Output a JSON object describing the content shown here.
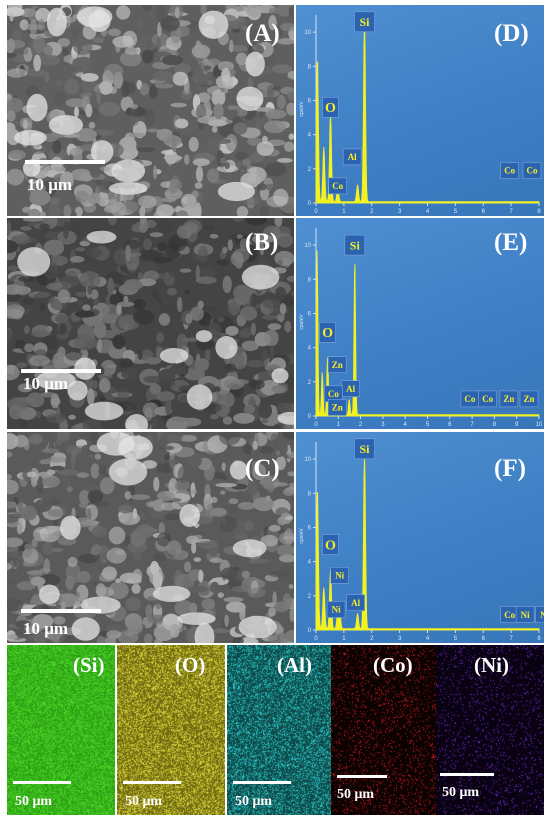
{
  "sem_panels": [
    {
      "letter": "(A)",
      "scale_label": "10 μm"
    },
    {
      "letter": "(B)",
      "scale_label": "10 μm"
    },
    {
      "letter": "(C)",
      "scale_label": "10 μm"
    }
  ],
  "chart_data": [
    {
      "type": "line",
      "panel_letter": "(D)",
      "xlim": [
        0,
        8
      ],
      "ylim": [
        0,
        11
      ],
      "x_ticks": [
        "0",
        "1",
        "2",
        "3",
        "4",
        "5",
        "6",
        "7",
        "8"
      ],
      "y_ticks": [
        "0",
        "2",
        "4",
        "6",
        "8",
        "10"
      ],
      "ylabel": "cps/eV",
      "peaks": [
        {
          "x": 0.05,
          "y": 8.5
        },
        {
          "x": 0.28,
          "y": 3.2
        },
        {
          "x": 0.52,
          "y": 5.2
        },
        {
          "x": 0.78,
          "y": 0.8
        },
        {
          "x": 1.49,
          "y": 1.0
        },
        {
          "x": 1.74,
          "y": 10.7
        }
      ],
      "annotations": [
        {
          "text": "Si",
          "x": 1.74,
          "y": 10.6
        },
        {
          "text": "O",
          "x": 0.52,
          "y": 5.6
        },
        {
          "text": "Al",
          "x": 1.3,
          "y": 2.7
        },
        {
          "text": "Co",
          "x": 0.78,
          "y": 1.0
        },
        {
          "text": "Co",
          "x": 6.95,
          "y": 1.9
        },
        {
          "text": "Co",
          "x": 7.75,
          "y": 1.9
        }
      ]
    },
    {
      "type": "line",
      "panel_letter": "(E)",
      "xlim": [
        0,
        10
      ],
      "ylim": [
        0,
        11
      ],
      "x_ticks": [
        "0",
        "1",
        "2",
        "3",
        "4",
        "5",
        "6",
        "7",
        "8",
        "9",
        "10"
      ],
      "y_ticks": [
        "0",
        "2",
        "4",
        "6",
        "8",
        "10"
      ],
      "ylabel": "cps/eV",
      "peaks": [
        {
          "x": 0.05,
          "y": 9.6
        },
        {
          "x": 0.28,
          "y": 2.5
        },
        {
          "x": 0.52,
          "y": 3.4
        },
        {
          "x": 0.78,
          "y": 1.0
        },
        {
          "x": 1.01,
          "y": 1.1
        },
        {
          "x": 1.49,
          "y": 0.9
        },
        {
          "x": 1.74,
          "y": 9.2
        }
      ],
      "annotations": [
        {
          "text": "Si",
          "x": 1.74,
          "y": 10.0
        },
        {
          "text": "O",
          "x": 0.52,
          "y": 4.9
        },
        {
          "text": "Zn",
          "x": 0.95,
          "y": 3.0
        },
        {
          "text": "Al",
          "x": 1.55,
          "y": 1.6
        },
        {
          "text": "Co",
          "x": 0.78,
          "y": 1.3
        },
        {
          "text": "Zn",
          "x": 0.95,
          "y": 0.5
        },
        {
          "text": "Co",
          "x": 6.9,
          "y": 1.0
        },
        {
          "text": "Co",
          "x": 7.7,
          "y": 1.0
        },
        {
          "text": "Zn",
          "x": 8.65,
          "y": 1.0
        },
        {
          "text": "Zn",
          "x": 9.55,
          "y": 1.0
        }
      ]
    },
    {
      "type": "line",
      "panel_letter": "(F)",
      "xlim": [
        0,
        8
      ],
      "ylim": [
        0,
        11
      ],
      "x_ticks": [
        "0",
        "1",
        "2",
        "3",
        "4",
        "5",
        "6",
        "7",
        "8"
      ],
      "y_ticks": [
        "0",
        "2",
        "4",
        "6",
        "8",
        "10"
      ],
      "ylabel": "cps/eV",
      "peaks": [
        {
          "x": 0.05,
          "y": 8.3
        },
        {
          "x": 0.28,
          "y": 2.4
        },
        {
          "x": 0.52,
          "y": 3.4
        },
        {
          "x": 0.78,
          "y": 0.9
        },
        {
          "x": 0.85,
          "y": 1.0
        },
        {
          "x": 1.49,
          "y": 0.9
        },
        {
          "x": 1.74,
          "y": 10.3
        }
      ],
      "annotations": [
        {
          "text": "Si",
          "x": 1.74,
          "y": 10.6
        },
        {
          "text": "O",
          "x": 0.52,
          "y": 5.0
        },
        {
          "text": "Ni",
          "x": 0.85,
          "y": 3.2
        },
        {
          "text": "Al",
          "x": 1.42,
          "y": 1.6
        },
        {
          "text": "Ni",
          "x": 0.72,
          "y": 1.2
        },
        {
          "text": "Co",
          "x": 6.95,
          "y": 0.9
        },
        {
          "text": "Ni",
          "x": 7.5,
          "y": 0.9
        },
        {
          "text": "Ni",
          "x": 8.2,
          "y": 0.9
        }
      ]
    }
  ],
  "element_maps": [
    {
      "label": "(Si)",
      "color": "#4fdc28",
      "base": "#2c9e14",
      "scale_label": "50 μm"
    },
    {
      "label": "(O)",
      "color": "#e8e040",
      "base": "#6e6a10",
      "scale_label": "50 μm"
    },
    {
      "label": "(Al)",
      "color": "#30d8d8",
      "base": "#0e4a4a",
      "scale_label": "50 μm"
    },
    {
      "label": "(Co)",
      "color": "#e02020",
      "base": "#0c0202",
      "scale_label": "50 μm"
    },
    {
      "label": "(Ni)",
      "color": "#8a30e8",
      "base": "#080212",
      "scale_label": "50 μm"
    }
  ]
}
